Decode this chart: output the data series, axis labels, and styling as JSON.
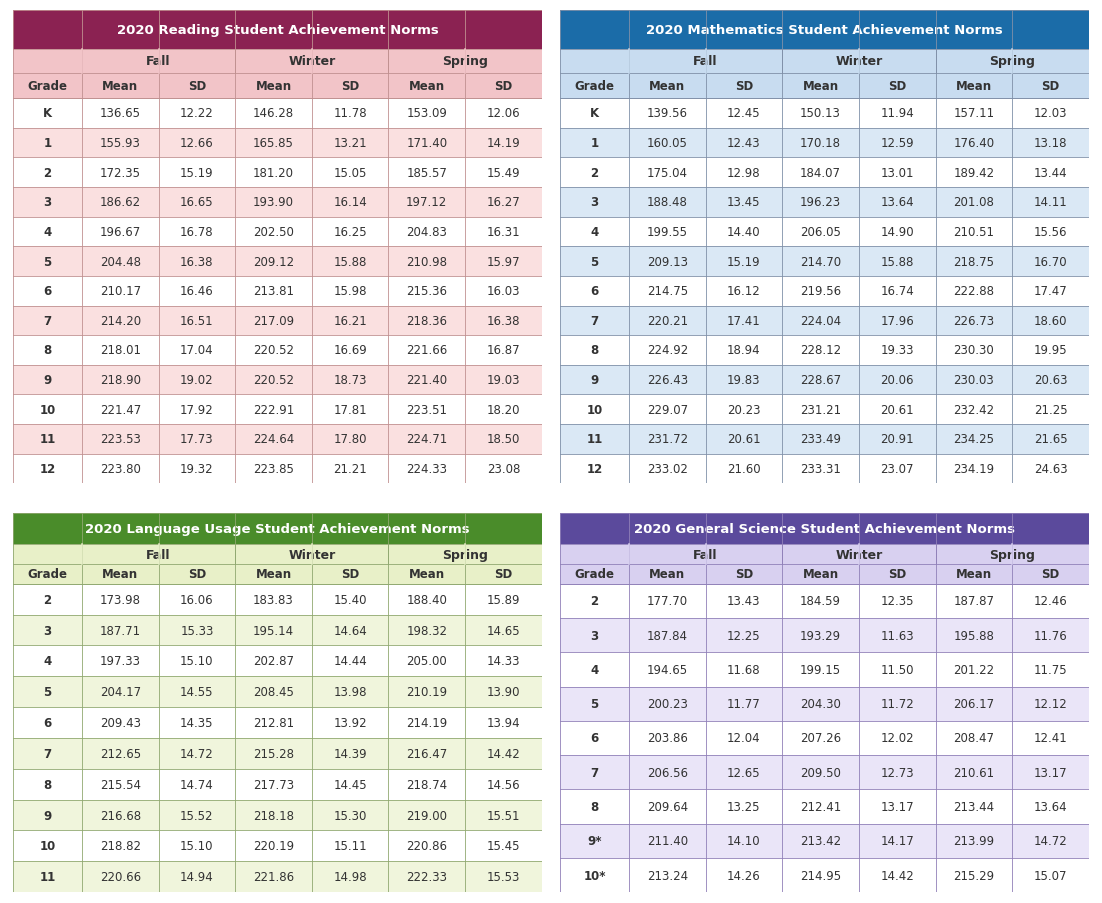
{
  "reading": {
    "title": "2020 Reading Student Achievement Norms",
    "title_bg": "#8B2252",
    "header1_bg": "#F2C4C8",
    "header2_bg": "#F2C4C8",
    "row_odd_bg": "#FFFFFF",
    "row_even_bg": "#FAE0E0",
    "border_color": "#C09090",
    "text_color": "#333333",
    "title_text_color": "#FFFFFF",
    "header_text_color": "#333333",
    "grades": [
      "K",
      "1",
      "2",
      "3",
      "4",
      "5",
      "6",
      "7",
      "8",
      "9",
      "10",
      "11",
      "12"
    ],
    "fall_mean": [
      136.65,
      155.93,
      172.35,
      186.62,
      196.67,
      204.48,
      210.17,
      214.2,
      218.01,
      218.9,
      221.47,
      223.53,
      223.8
    ],
    "fall_sd": [
      12.22,
      12.66,
      15.19,
      16.65,
      16.78,
      16.38,
      16.46,
      16.51,
      17.04,
      19.02,
      17.92,
      17.73,
      19.32
    ],
    "winter_mean": [
      146.28,
      165.85,
      181.2,
      193.9,
      202.5,
      209.12,
      213.81,
      217.09,
      220.52,
      220.52,
      222.91,
      224.64,
      223.85
    ],
    "winter_sd": [
      11.78,
      13.21,
      15.05,
      16.14,
      16.25,
      15.88,
      15.98,
      16.21,
      16.69,
      18.73,
      17.81,
      17.8,
      21.21
    ],
    "spring_mean": [
      153.09,
      171.4,
      185.57,
      197.12,
      204.83,
      210.98,
      215.36,
      218.36,
      221.66,
      221.4,
      223.51,
      224.71,
      224.33
    ],
    "spring_sd": [
      12.06,
      14.19,
      15.49,
      16.27,
      16.31,
      15.97,
      16.03,
      16.38,
      16.87,
      19.03,
      18.2,
      18.5,
      23.08
    ]
  },
  "math": {
    "title": "2020 Mathematics Student Achievement Norms",
    "title_bg": "#1B6CA8",
    "header1_bg": "#C8DCF0",
    "header2_bg": "#C8DCF0",
    "row_odd_bg": "#FFFFFF",
    "row_even_bg": "#DAE8F5",
    "border_color": "#8090A8",
    "text_color": "#333333",
    "title_text_color": "#FFFFFF",
    "header_text_color": "#333333",
    "grades": [
      "K",
      "1",
      "2",
      "3",
      "4",
      "5",
      "6",
      "7",
      "8",
      "9",
      "10",
      "11",
      "12"
    ],
    "fall_mean": [
      139.56,
      160.05,
      175.04,
      188.48,
      199.55,
      209.13,
      214.75,
      220.21,
      224.92,
      226.43,
      229.07,
      231.72,
      233.02
    ],
    "fall_sd": [
      12.45,
      12.43,
      12.98,
      13.45,
      14.4,
      15.19,
      16.12,
      17.41,
      18.94,
      19.83,
      20.23,
      20.61,
      21.6
    ],
    "winter_mean": [
      150.13,
      170.18,
      184.07,
      196.23,
      206.05,
      214.7,
      219.56,
      224.04,
      228.12,
      228.67,
      231.21,
      233.49,
      233.31
    ],
    "winter_sd": [
      11.94,
      12.59,
      13.01,
      13.64,
      14.9,
      15.88,
      16.74,
      17.96,
      19.33,
      20.06,
      20.61,
      20.91,
      23.07
    ],
    "spring_mean": [
      157.11,
      176.4,
      189.42,
      201.08,
      210.51,
      218.75,
      222.88,
      226.73,
      230.3,
      230.03,
      232.42,
      234.25,
      234.19
    ],
    "spring_sd": [
      12.03,
      13.18,
      13.44,
      14.11,
      15.56,
      16.7,
      17.47,
      18.6,
      19.95,
      20.63,
      21.25,
      21.65,
      24.63
    ]
  },
  "language": {
    "title": "2020 Language Usage Student Achievement Norms",
    "title_bg": "#4A8C2A",
    "header1_bg": "#E8F0C8",
    "header2_bg": "#E8F0C8",
    "row_odd_bg": "#FFFFFF",
    "row_even_bg": "#F0F5DC",
    "border_color": "#90A870",
    "text_color": "#333333",
    "title_text_color": "#FFFFFF",
    "header_text_color": "#333333",
    "grades": [
      "2",
      "3",
      "4",
      "5",
      "6",
      "7",
      "8",
      "9",
      "10",
      "11"
    ],
    "fall_mean": [
      173.98,
      187.71,
      197.33,
      204.17,
      209.43,
      212.65,
      215.54,
      216.68,
      218.82,
      220.66
    ],
    "fall_sd": [
      16.06,
      15.33,
      15.1,
      14.55,
      14.35,
      14.72,
      14.74,
      15.52,
      15.1,
      14.94
    ],
    "winter_mean": [
      183.83,
      195.14,
      202.87,
      208.45,
      212.81,
      215.28,
      217.73,
      218.18,
      220.19,
      221.86
    ],
    "winter_sd": [
      15.4,
      14.64,
      14.44,
      13.98,
      13.92,
      14.39,
      14.45,
      15.3,
      15.11,
      14.98
    ],
    "spring_mean": [
      188.4,
      198.32,
      205.0,
      210.19,
      214.19,
      216.47,
      218.74,
      219.0,
      220.86,
      222.33
    ],
    "spring_sd": [
      15.89,
      14.65,
      14.33,
      13.9,
      13.94,
      14.42,
      14.56,
      15.51,
      15.45,
      15.53
    ]
  },
  "science": {
    "title": "2020 General Science Student Achievement Norms",
    "title_bg": "#5B4A9C",
    "header1_bg": "#D8D0F0",
    "header2_bg": "#D8D0F0",
    "row_odd_bg": "#FFFFFF",
    "row_even_bg": "#EAE5F8",
    "border_color": "#9080B8",
    "text_color": "#333333",
    "title_text_color": "#FFFFFF",
    "header_text_color": "#333333",
    "grades": [
      "2",
      "3",
      "4",
      "5",
      "6",
      "7",
      "8",
      "9*",
      "10*"
    ],
    "fall_mean": [
      177.7,
      187.84,
      194.65,
      200.23,
      203.86,
      206.56,
      209.64,
      211.4,
      213.24
    ],
    "fall_sd": [
      13.43,
      12.25,
      11.68,
      11.77,
      12.04,
      12.65,
      13.25,
      14.1,
      14.26
    ],
    "winter_mean": [
      184.59,
      193.29,
      199.15,
      204.3,
      207.26,
      209.5,
      212.41,
      213.42,
      214.95
    ],
    "winter_sd": [
      12.35,
      11.63,
      11.5,
      11.72,
      12.02,
      12.73,
      13.17,
      14.17,
      14.42
    ],
    "spring_mean": [
      187.87,
      195.88,
      201.22,
      206.17,
      208.47,
      210.61,
      213.44,
      213.99,
      215.29
    ],
    "spring_sd": [
      12.46,
      11.76,
      11.75,
      12.12,
      12.41,
      13.17,
      13.64,
      14.72,
      15.07
    ]
  }
}
